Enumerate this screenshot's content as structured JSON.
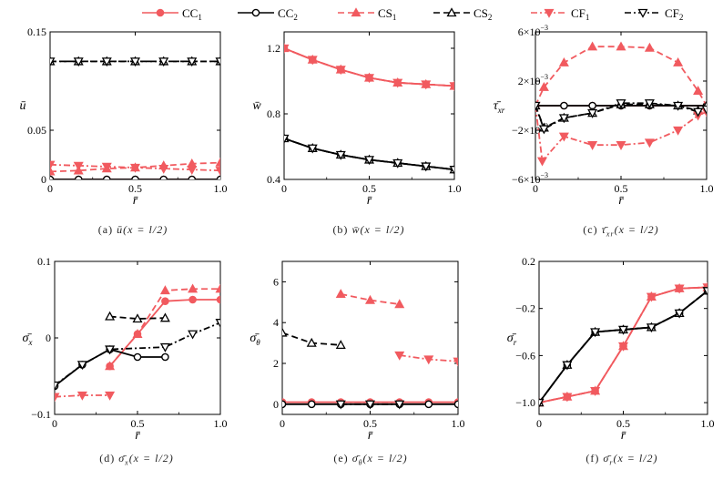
{
  "legend": [
    {
      "label": "CC",
      "sub": "1",
      "color": "#f15a5f",
      "dash": "",
      "marker": "circle",
      "fill": true
    },
    {
      "label": "CC",
      "sub": "2",
      "color": "#000000",
      "dash": "",
      "marker": "circle",
      "fill": false
    },
    {
      "label": "CS",
      "sub": "1",
      "color": "#f15a5f",
      "dash": "7,4",
      "marker": "triangle",
      "fill": true
    },
    {
      "label": "CS",
      "sub": "2",
      "color": "#000000",
      "dash": "7,4",
      "marker": "triangle",
      "fill": false
    },
    {
      "label": "CF",
      "sub": "1",
      "color": "#f15a5f",
      "dash": "7,3,2,3",
      "marker": "triangle-down",
      "fill": true
    },
    {
      "label": "CF",
      "sub": "2",
      "color": "#000000",
      "dash": "7,3,2,3",
      "marker": "triangle-down",
      "fill": false
    }
  ],
  "captions": [
    {
      "label": "(a)",
      "sym": "ū",
      "cond": "(x = l/2)"
    },
    {
      "label": "(b)",
      "sym": "w̄",
      "cond": "(x = l/2)"
    },
    {
      "label": "(c)",
      "sym": "τ̄",
      "symsub": "xr",
      "cond": "(x = l/2)"
    },
    {
      "label": "(d)",
      "sym": "σ̄",
      "symsub": "x",
      "cond": "(x = l/2)"
    },
    {
      "label": "(e)",
      "sym": "σ̄",
      "symsub": "θ",
      "cond": "(x = l/2)"
    },
    {
      "label": "(f)",
      "sym": "σ̄",
      "symsub": "r",
      "cond": "(x = l/2)"
    }
  ],
  "chart_data": [
    {
      "type": "line",
      "id": "a",
      "ylabel": "ū",
      "xlabel": "r̄",
      "xlim": [
        0,
        1
      ],
      "ylim": [
        0,
        0.15
      ],
      "xticks": [
        "0",
        "0.5",
        "1.0"
      ],
      "xtickvals": [
        0,
        0.5,
        1
      ],
      "yticks": [
        "0",
        "0.05",
        "0.15"
      ],
      "ytickvals": [
        0,
        0.05,
        0.15
      ],
      "series": [
        {
          "name": "CC1",
          "x": [
            0,
            0.167,
            0.333,
            0.5,
            0.667,
            0.833,
            1.0
          ],
          "y": [
            0,
            0,
            0,
            0,
            0,
            0,
            0
          ]
        },
        {
          "name": "CC2",
          "x": [
            0,
            0.167,
            0.333,
            0.5,
            0.667,
            0.833,
            1.0
          ],
          "y": [
            0,
            0,
            0,
            0,
            0,
            0,
            0
          ]
        },
        {
          "name": "CS1",
          "x": [
            0,
            0.167,
            0.333,
            0.5,
            0.667,
            0.833,
            1.0
          ],
          "y": [
            0.008,
            0.009,
            0.011,
            0.012,
            0.014,
            0.016,
            0.017
          ]
        },
        {
          "name": "CS2",
          "x": [
            0,
            0.167,
            0.333,
            0.5,
            0.667,
            0.833,
            1.0
          ],
          "y": [
            0.12,
            0.12,
            0.12,
            0.12,
            0.12,
            0.12,
            0.12
          ]
        },
        {
          "name": "CF1",
          "x": [
            0,
            0.167,
            0.333,
            0.5,
            0.667,
            0.833,
            1.0
          ],
          "y": [
            0.015,
            0.014,
            0.013,
            0.012,
            0.011,
            0.01,
            0.009
          ]
        },
        {
          "name": "CF2",
          "x": [
            0,
            0.167,
            0.333,
            0.5,
            0.667,
            0.833,
            1.0
          ],
          "y": [
            0.12,
            0.12,
            0.12,
            0.12,
            0.12,
            0.12,
            0.12
          ]
        }
      ]
    },
    {
      "type": "line",
      "id": "b",
      "ylabel": "w̄",
      "xlabel": "r̄",
      "xlim": [
        0,
        1
      ],
      "ylim": [
        0.4,
        1.3
      ],
      "xticks": [
        "0",
        "0.5",
        "1.0"
      ],
      "xtickvals": [
        0,
        0.5,
        1
      ],
      "yticks": [
        "0.4",
        "0.8",
        "1.2"
      ],
      "ytickvals": [
        0.4,
        0.8,
        1.2
      ],
      "series": [
        {
          "name": "CC1",
          "x": [
            0,
            0.167,
            0.333,
            0.5,
            0.667,
            0.833,
            1.0
          ],
          "y": [
            1.2,
            1.13,
            1.07,
            1.02,
            0.99,
            0.98,
            0.97
          ]
        },
        {
          "name": "CC2",
          "x": [
            0,
            0.167,
            0.333,
            0.5,
            0.667,
            0.833,
            1.0
          ],
          "y": [
            0.65,
            0.59,
            0.55,
            0.52,
            0.5,
            0.48,
            0.46
          ]
        },
        {
          "name": "CS1",
          "x": [
            0,
            0.167,
            0.333,
            0.5,
            0.667,
            0.833,
            1.0
          ],
          "y": [
            1.2,
            1.13,
            1.07,
            1.02,
            0.99,
            0.98,
            0.97
          ]
        },
        {
          "name": "CS2",
          "x": [
            0,
            0.167,
            0.333,
            0.5,
            0.667,
            0.833,
            1.0
          ],
          "y": [
            0.65,
            0.59,
            0.55,
            0.52,
            0.5,
            0.48,
            0.46
          ]
        },
        {
          "name": "CF1",
          "x": [
            0,
            0.167,
            0.333,
            0.5,
            0.667,
            0.833,
            1.0
          ],
          "y": [
            1.2,
            1.13,
            1.07,
            1.02,
            0.99,
            0.98,
            0.97
          ]
        },
        {
          "name": "CF2",
          "x": [
            0,
            0.167,
            0.333,
            0.5,
            0.667,
            0.833,
            1.0
          ],
          "y": [
            0.65,
            0.59,
            0.55,
            0.52,
            0.5,
            0.48,
            0.46
          ]
        }
      ]
    },
    {
      "type": "line",
      "id": "c",
      "ylabel": "τ̄",
      "ylabelsub": "xr",
      "xlabel": "r̄",
      "xlim": [
        0,
        1
      ],
      "ylim": [
        -6,
        6
      ],
      "xticks": [
        "0",
        "0.5",
        "1.0"
      ],
      "xtickvals": [
        0,
        0.5,
        1
      ],
      "yticks": [
        "−6×10",
        "−2×10",
        "2×10",
        "6×10"
      ],
      "ytickexp": "−3",
      "ytickvals": [
        -6,
        -2,
        2,
        6
      ],
      "series": [
        {
          "name": "CC1",
          "x": [
            0,
            0.167,
            0.333,
            0.5,
            0.667,
            0.833,
            1.0
          ],
          "y": [
            0,
            0,
            0,
            0,
            0,
            0,
            0
          ]
        },
        {
          "name": "CC2",
          "x": [
            0,
            0.167,
            0.333,
            0.5,
            0.667,
            0.833,
            1.0
          ],
          "y": [
            0,
            0,
            0,
            0,
            0,
            0,
            0
          ]
        },
        {
          "name": "CS1",
          "x": [
            0,
            0.05,
            0.167,
            0.333,
            0.5,
            0.667,
            0.833,
            0.95,
            1.0
          ],
          "y": [
            0,
            1.5,
            3.5,
            4.8,
            4.8,
            4.7,
            3.5,
            1.2,
            0
          ]
        },
        {
          "name": "CS2",
          "x": [
            0,
            0.05,
            0.167,
            0.333,
            0.5,
            0.667,
            0.833,
            0.95,
            1.0
          ],
          "y": [
            0,
            -1.8,
            -1.0,
            -0.6,
            0.1,
            0.1,
            0.0,
            -0.4,
            0
          ]
        },
        {
          "name": "CF1",
          "x": [
            0,
            0.04,
            0.167,
            0.333,
            0.5,
            0.667,
            0.833,
            0.95,
            1.0
          ],
          "y": [
            0,
            -4.5,
            -2.5,
            -3.2,
            -3.2,
            -3.0,
            -2.0,
            -0.8,
            -0.5
          ]
        },
        {
          "name": "CF2",
          "x": [
            0,
            0.05,
            0.167,
            0.333,
            0.5,
            0.667,
            0.833,
            0.95,
            1.0
          ],
          "y": [
            0,
            -1.9,
            -1.0,
            -0.6,
            0.2,
            0.2,
            0.0,
            -0.5,
            -0.3
          ]
        }
      ]
    },
    {
      "type": "line",
      "id": "d",
      "ylabel": "σ̄",
      "ylabelsub": "x",
      "xlabel": "r̄",
      "xlim": [
        0,
        1
      ],
      "ylim": [
        -0.1,
        0.1
      ],
      "xticks": [
        "0",
        "0.5",
        "1.0"
      ],
      "xtickvals": [
        0,
        0.5,
        1
      ],
      "yticks": [
        "−0.1",
        "0",
        "0.1"
      ],
      "ytickvals": [
        -0.1,
        0,
        0.1
      ],
      "series": [
        {
          "name": "CC1",
          "x": [
            0.333,
            0.5,
            0.667,
            0.833,
            1.0
          ],
          "y": [
            -0.037,
            0.005,
            0.048,
            0.05,
            0.05
          ]
        },
        {
          "name": "CC2",
          "x": [
            0,
            0.167,
            0.333,
            0.5,
            0.667
          ],
          "y": [
            -0.063,
            -0.035,
            -0.015,
            -0.025,
            -0.025
          ]
        },
        {
          "name": "CS1",
          "x": [
            0.333,
            0.5,
            0.667,
            0.833,
            1.0
          ],
          "y": [
            -0.037,
            0.005,
            0.062,
            0.064,
            0.064
          ]
        },
        {
          "name": "CS2",
          "x": [
            0.333,
            0.5,
            0.667
          ],
          "y": [
            0.028,
            0.025,
            0.026
          ]
        },
        {
          "name": "CF1",
          "x": [
            0,
            0.167,
            0.333
          ],
          "y": [
            -0.077,
            -0.075,
            -0.075
          ]
        },
        {
          "name": "CF2",
          "x": [
            0,
            0.167,
            0.333,
            0.667,
            0.833,
            1.0
          ],
          "y": [
            -0.062,
            -0.035,
            -0.015,
            -0.012,
            0.005,
            0.02
          ]
        }
      ]
    },
    {
      "type": "line",
      "id": "e",
      "ylabel": "σ̄",
      "ylabelsub": "θ",
      "xlabel": "r̄",
      "xlim": [
        0,
        1
      ],
      "ylim": [
        -0.5,
        7
      ],
      "xticks": [
        "0",
        "0.5",
        "1.0"
      ],
      "xtickvals": [
        0,
        0.5,
        1
      ],
      "yticks": [
        "0",
        "2",
        "4",
        "6"
      ],
      "ytickvals": [
        0,
        2,
        4,
        6
      ],
      "series": [
        {
          "name": "CC1",
          "x": [
            0,
            0.167,
            0.333,
            0.5,
            0.667,
            0.833,
            1.0
          ],
          "y": [
            0.1,
            0.1,
            0.1,
            0.1,
            0.1,
            0.1,
            0.1
          ]
        },
        {
          "name": "CC2",
          "x": [
            0,
            0.167,
            0.333,
            0.5,
            0.667,
            0.833,
            1.0
          ],
          "y": [
            0.0,
            0.0,
            0.0,
            0.0,
            0.0,
            0.0,
            0.0
          ]
        },
        {
          "name": "CS1",
          "x": [
            0.333,
            0.5,
            0.667
          ],
          "y": [
            5.4,
            5.1,
            4.9
          ]
        },
        {
          "name": "CS2",
          "x": [
            0,
            0.167,
            0.333
          ],
          "y": [
            3.5,
            3.0,
            2.9
          ]
        },
        {
          "name": "CF1",
          "x": [
            0.667,
            0.833,
            1.0
          ],
          "y": [
            2.4,
            2.2,
            2.1
          ]
        },
        {
          "name": "CF2",
          "x": [
            0.333,
            0.5,
            0.667
          ],
          "y": [
            0.0,
            0.0,
            0.0
          ]
        }
      ]
    },
    {
      "type": "line",
      "id": "f",
      "ylabel": "σ̄",
      "ylabelsub": "r",
      "xlabel": "r̄",
      "xlim": [
        0,
        1
      ],
      "ylim": [
        -1.1,
        0.2
      ],
      "xticks": [
        "0",
        "0.5",
        "1.0"
      ],
      "xtickvals": [
        0,
        0.5,
        1
      ],
      "yticks": [
        "−1.0",
        "−0.6",
        "−0.2",
        "0.2"
      ],
      "ytickvals": [
        -1.0,
        -0.6,
        -0.2,
        0.2
      ],
      "series": [
        {
          "name": "CC1",
          "x": [
            0,
            0.167,
            0.333,
            0.5,
            0.667,
            0.833,
            1.0
          ],
          "y": [
            -1.0,
            -0.95,
            -0.9,
            -0.52,
            -0.1,
            -0.03,
            -0.02
          ]
        },
        {
          "name": "CC2",
          "x": [
            0,
            0.167,
            0.333,
            0.5,
            0.667,
            0.833,
            1.0
          ],
          "y": [
            -1.0,
            -0.68,
            -0.4,
            -0.38,
            -0.36,
            -0.24,
            -0.05
          ]
        },
        {
          "name": "CS1",
          "x": [
            0,
            0.167,
            0.333,
            0.5,
            0.667,
            0.833,
            1.0
          ],
          "y": [
            -1.0,
            -0.95,
            -0.9,
            -0.52,
            -0.1,
            -0.03,
            -0.02
          ]
        },
        {
          "name": "CS2",
          "x": [
            0,
            0.167,
            0.333,
            0.5,
            0.667,
            0.833,
            1.0
          ],
          "y": [
            -1.0,
            -0.68,
            -0.4,
            -0.38,
            -0.36,
            -0.24,
            -0.05
          ]
        },
        {
          "name": "CF1",
          "x": [
            0,
            0.167,
            0.333,
            0.5,
            0.667,
            0.833,
            1.0
          ],
          "y": [
            -1.0,
            -0.95,
            -0.9,
            -0.52,
            -0.1,
            -0.03,
            -0.02
          ]
        },
        {
          "name": "CF2",
          "x": [
            0,
            0.167,
            0.333,
            0.5,
            0.667,
            0.833,
            1.0
          ],
          "y": [
            -1.0,
            -0.68,
            -0.4,
            -0.38,
            -0.36,
            -0.24,
            -0.05
          ]
        }
      ]
    }
  ]
}
